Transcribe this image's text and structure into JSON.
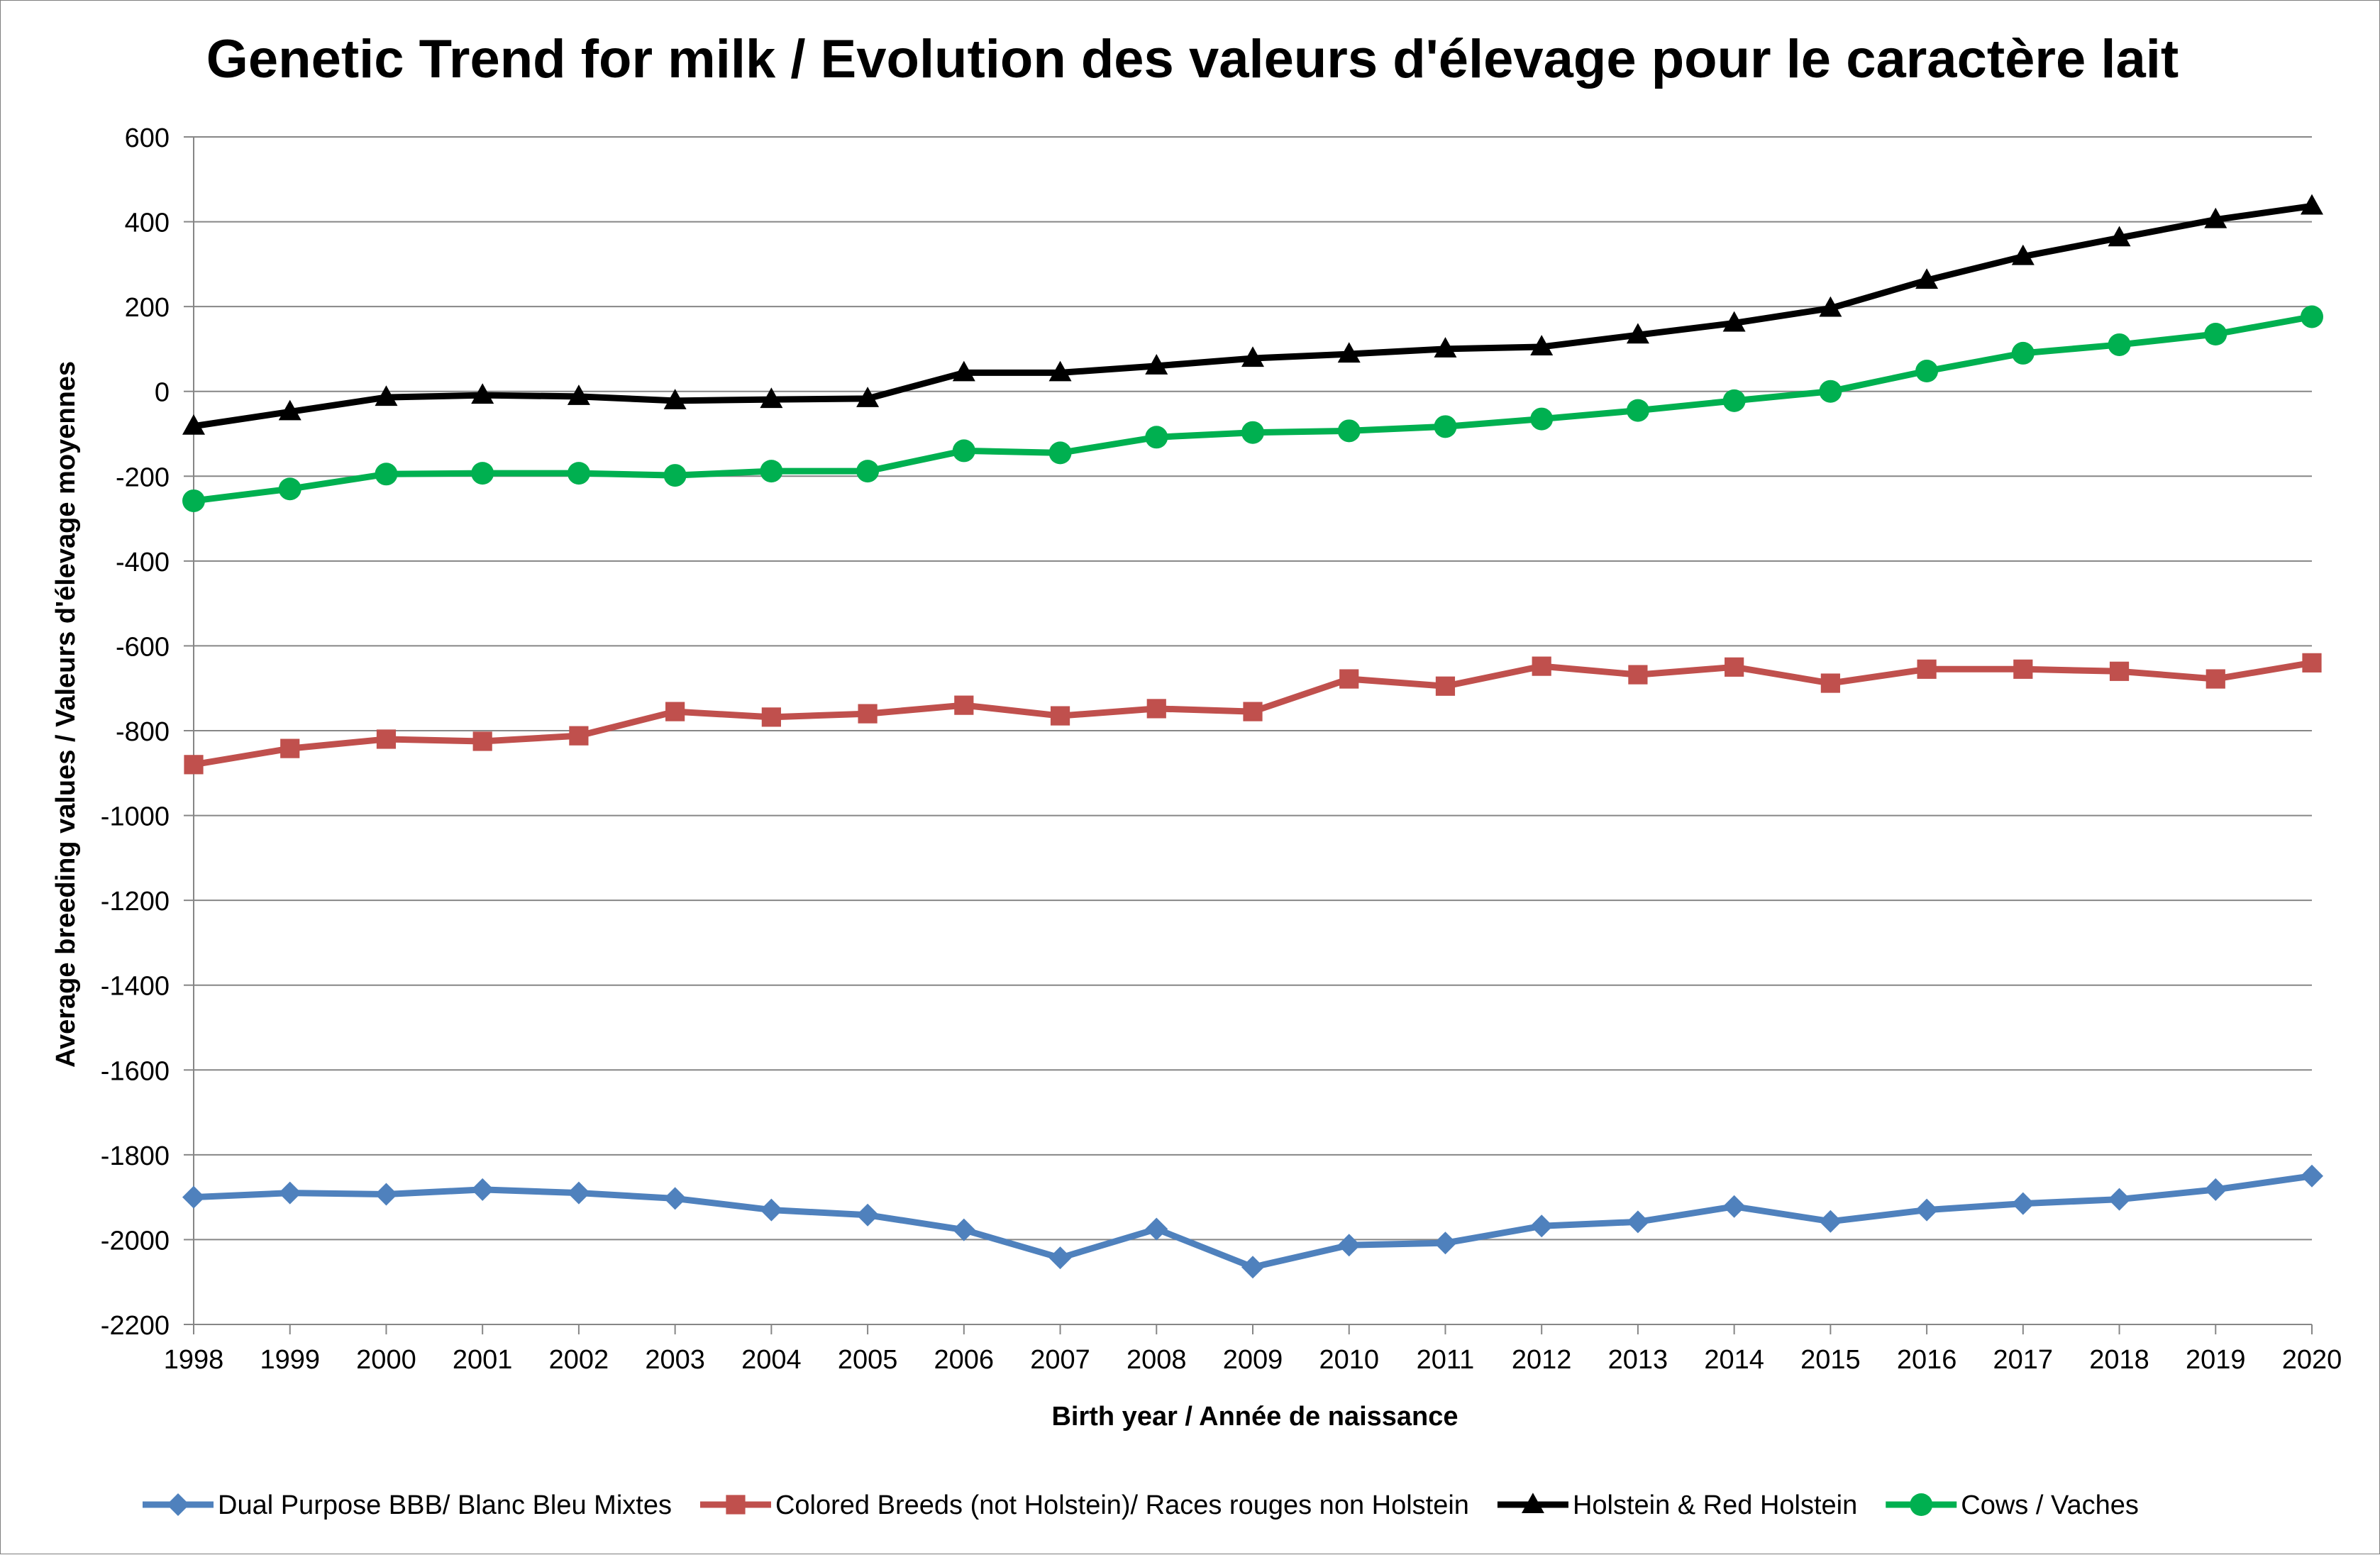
{
  "chart_data": {
    "type": "line",
    "title": "Genetic Trend for milk / Evolution des valeurs d'élevage pour le caractère lait",
    "xlabel": "Birth year / Année de naissance",
    "ylabel": "Average  breeding values / Valeurs d'élevage moyennes",
    "ylim": [
      -2200,
      600
    ],
    "yticks": [
      600,
      400,
      200,
      0,
      -200,
      -400,
      -600,
      -800,
      -1000,
      -1200,
      -1400,
      -1600,
      -1800,
      -2000,
      -2200
    ],
    "grid": true,
    "legend_position": "bottom",
    "categories": [
      "1998",
      "1999",
      "2000",
      "2001",
      "2002",
      "2003",
      "2004",
      "2005",
      "2006",
      "2007",
      "2008",
      "2009",
      "2010",
      "2011",
      "2012",
      "2013",
      "2014",
      "2015",
      "2016",
      "2017",
      "2018",
      "2019",
      "2020"
    ],
    "series": [
      {
        "name": "Dual Purpose BBB/ Blanc Bleu Mixtes",
        "color": "#4f81bd",
        "marker": "diamond",
        "values": [
          -1900,
          -1890,
          -1893,
          -1882,
          -1890,
          -1903,
          -1930,
          -1942,
          -1977,
          -2043,
          -1975,
          -2065,
          -2013,
          -2008,
          -1968,
          -1958,
          -1922,
          -1957,
          -1930,
          -1915,
          -1905,
          -1882,
          -1850
        ]
      },
      {
        "name": "Colored Breeds (not Holstein)/ Races rouges non Holstein",
        "color": "#c0504d",
        "marker": "square",
        "values": [
          -880,
          -842,
          -820,
          -825,
          -812,
          -755,
          -768,
          -760,
          -740,
          -765,
          -748,
          -755,
          -678,
          -695,
          -648,
          -668,
          -650,
          -688,
          -655,
          -655,
          -660,
          -678,
          -640
        ]
      },
      {
        "name": "Holstein & Red Holstein",
        "color": "#000000",
        "marker": "triangle",
        "values": [
          -82,
          -48,
          -14,
          -9,
          -12,
          -22,
          -19,
          -17,
          44,
          44,
          60,
          78,
          88,
          100,
          105,
          133,
          161,
          196,
          262,
          318,
          362,
          405,
          437
        ]
      },
      {
        "name": "Cows / Vaches",
        "color": "#00b050",
        "marker": "circle",
        "values": [
          -258,
          -230,
          -195,
          -193,
          -193,
          -198,
          -188,
          -188,
          -140,
          -145,
          -108,
          -97,
          -93,
          -83,
          -65,
          -45,
          -22,
          0,
          48,
          90,
          110,
          135,
          176
        ]
      }
    ]
  }
}
